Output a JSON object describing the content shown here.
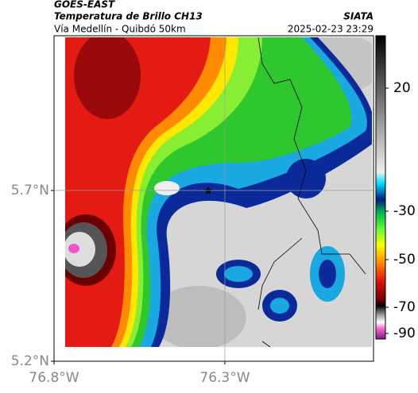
{
  "header": {
    "satellite": "GOES-EAST",
    "product": "Temperatura de Brillo CH13",
    "region": "Vía Medellín - Quibdó 50km",
    "source": "SIATA",
    "timestamp": "2025-02-23 23:29"
  },
  "map": {
    "lon_range": [
      -76.8,
      -75.865
    ],
    "lat_range": [
      5.2,
      6.153
    ],
    "lon_ticks": [
      {
        "value": -76.8,
        "label": "76.8°W"
      },
      {
        "value": -76.3,
        "label": "76.3°W"
      }
    ],
    "lat_ticks": [
      {
        "value": 5.7,
        "label": "5.7°N"
      },
      {
        "value": 5.2,
        "label": "5.2°N"
      }
    ]
  },
  "colorbar": {
    "ticks": [
      20,
      -30,
      -50,
      -70,
      -90
    ]
  }
}
